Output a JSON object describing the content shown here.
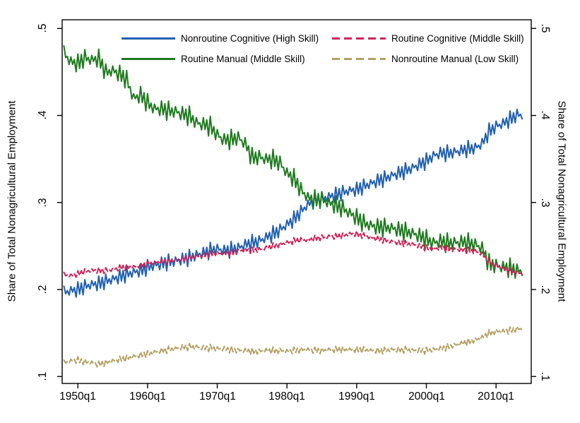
{
  "figure": {
    "left_axis_title": "Share of Total Nonagricultural Employment",
    "right_axis_title": "Share of Total Nonagricultural Employment"
  },
  "chart_data": {
    "type": "line",
    "title": "",
    "xlabel": "",
    "ylabel": "Share of Total Nonagricultural Employment",
    "grid": false,
    "legend_position": "top-inside-two-columns",
    "frame_color": "#000000",
    "xlim": [
      1947.75,
      2015.05
    ],
    "ylim": [
      0.092,
      0.51
    ],
    "x_ticks": [
      1950,
      1960,
      1970,
      1980,
      1990,
      2000,
      2010
    ],
    "x_tick_labels": [
      "1950q1",
      "1960q1",
      "1970q1",
      "1980q1",
      "1990q1",
      "2000q1",
      "2010q1"
    ],
    "y_ticks": [
      0.1,
      0.2,
      0.3,
      0.4,
      0.5
    ],
    "y_tick_labels": [
      ".1",
      ".2",
      ".3",
      ".4",
      ".5"
    ],
    "x_start": 1948.0,
    "x_end": 2013.75,
    "x_step_years": 0.25,
    "anchor_years_start": 1948,
    "seasonal_pattern": [
      0.9,
      -0.5,
      0.4,
      -1.0
    ],
    "series": [
      {
        "name": "Nonroutine Cognitive (High Skill)",
        "color": "#2160ac",
        "style": "solid",
        "seasonal_amplitude": 0.0075,
        "annual_values": [
          0.197,
          0.199,
          0.2,
          0.204,
          0.206,
          0.207,
          0.21,
          0.212,
          0.215,
          0.218,
          0.22,
          0.222,
          0.226,
          0.228,
          0.23,
          0.232,
          0.233,
          0.235,
          0.237,
          0.24,
          0.242,
          0.245,
          0.247,
          0.245,
          0.246,
          0.248,
          0.252,
          0.254,
          0.256,
          0.26,
          0.264,
          0.269,
          0.275,
          0.281,
          0.29,
          0.298,
          0.302,
          0.305,
          0.307,
          0.309,
          0.312,
          0.314,
          0.315,
          0.319,
          0.322,
          0.325,
          0.328,
          0.331,
          0.334,
          0.337,
          0.34,
          0.344,
          0.348,
          0.354,
          0.357,
          0.357,
          0.358,
          0.36,
          0.362,
          0.363,
          0.368,
          0.382,
          0.388,
          0.391,
          0.396,
          0.401
        ]
      },
      {
        "name": "Routine Manual (Middle Skill)",
        "color": "#1f7a1f",
        "style": "solid",
        "seasonal_amplitude": 0.009,
        "annual_values": [
          0.472,
          0.462,
          0.46,
          0.467,
          0.464,
          0.466,
          0.45,
          0.452,
          0.448,
          0.442,
          0.42,
          0.424,
          0.415,
          0.408,
          0.408,
          0.406,
          0.405,
          0.402,
          0.4,
          0.392,
          0.39,
          0.388,
          0.378,
          0.372,
          0.373,
          0.375,
          0.368,
          0.352,
          0.353,
          0.35,
          0.35,
          0.346,
          0.334,
          0.328,
          0.315,
          0.306,
          0.304,
          0.304,
          0.3,
          0.297,
          0.294,
          0.288,
          0.283,
          0.277,
          0.274,
          0.272,
          0.272,
          0.271,
          0.269,
          0.267,
          0.265,
          0.262,
          0.258,
          0.254,
          0.256,
          0.254,
          0.254,
          0.255,
          0.254,
          0.252,
          0.248,
          0.23,
          0.228,
          0.226,
          0.225,
          0.222
        ]
      },
      {
        "name": "Routine Cognitive (Middle Skill)",
        "color": "#cf2257",
        "style": "dashed",
        "seasonal_amplitude": 0.003,
        "annual_values": [
          0.217,
          0.216,
          0.218,
          0.221,
          0.222,
          0.222,
          0.222,
          0.223,
          0.225,
          0.226,
          0.226,
          0.228,
          0.23,
          0.231,
          0.232,
          0.233,
          0.234,
          0.235,
          0.236,
          0.238,
          0.239,
          0.241,
          0.242,
          0.241,
          0.242,
          0.244,
          0.246,
          0.245,
          0.246,
          0.248,
          0.25,
          0.252,
          0.254,
          0.256,
          0.257,
          0.257,
          0.259,
          0.26,
          0.261,
          0.261,
          0.262,
          0.264,
          0.264,
          0.262,
          0.26,
          0.258,
          0.257,
          0.255,
          0.254,
          0.253,
          0.252,
          0.25,
          0.248,
          0.247,
          0.248,
          0.247,
          0.246,
          0.246,
          0.245,
          0.244,
          0.241,
          0.232,
          0.228,
          0.224,
          0.221,
          0.219
        ]
      },
      {
        "name": "Nonroutine Manual (Low Skill)",
        "color": "#b3a065",
        "style": "dashed",
        "seasonal_amplitude": 0.0032,
        "annual_values": [
          0.116,
          0.118,
          0.119,
          0.117,
          0.116,
          0.114,
          0.116,
          0.118,
          0.12,
          0.121,
          0.123,
          0.125,
          0.126,
          0.128,
          0.13,
          0.131,
          0.132,
          0.134,
          0.134,
          0.134,
          0.133,
          0.133,
          0.132,
          0.132,
          0.131,
          0.13,
          0.13,
          0.129,
          0.129,
          0.13,
          0.13,
          0.13,
          0.129,
          0.13,
          0.131,
          0.131,
          0.13,
          0.13,
          0.131,
          0.131,
          0.131,
          0.131,
          0.131,
          0.131,
          0.13,
          0.13,
          0.13,
          0.131,
          0.131,
          0.131,
          0.13,
          0.13,
          0.13,
          0.131,
          0.132,
          0.134,
          0.136,
          0.138,
          0.14,
          0.142,
          0.145,
          0.15,
          0.152,
          0.152,
          0.153,
          0.155
        ]
      }
    ]
  }
}
